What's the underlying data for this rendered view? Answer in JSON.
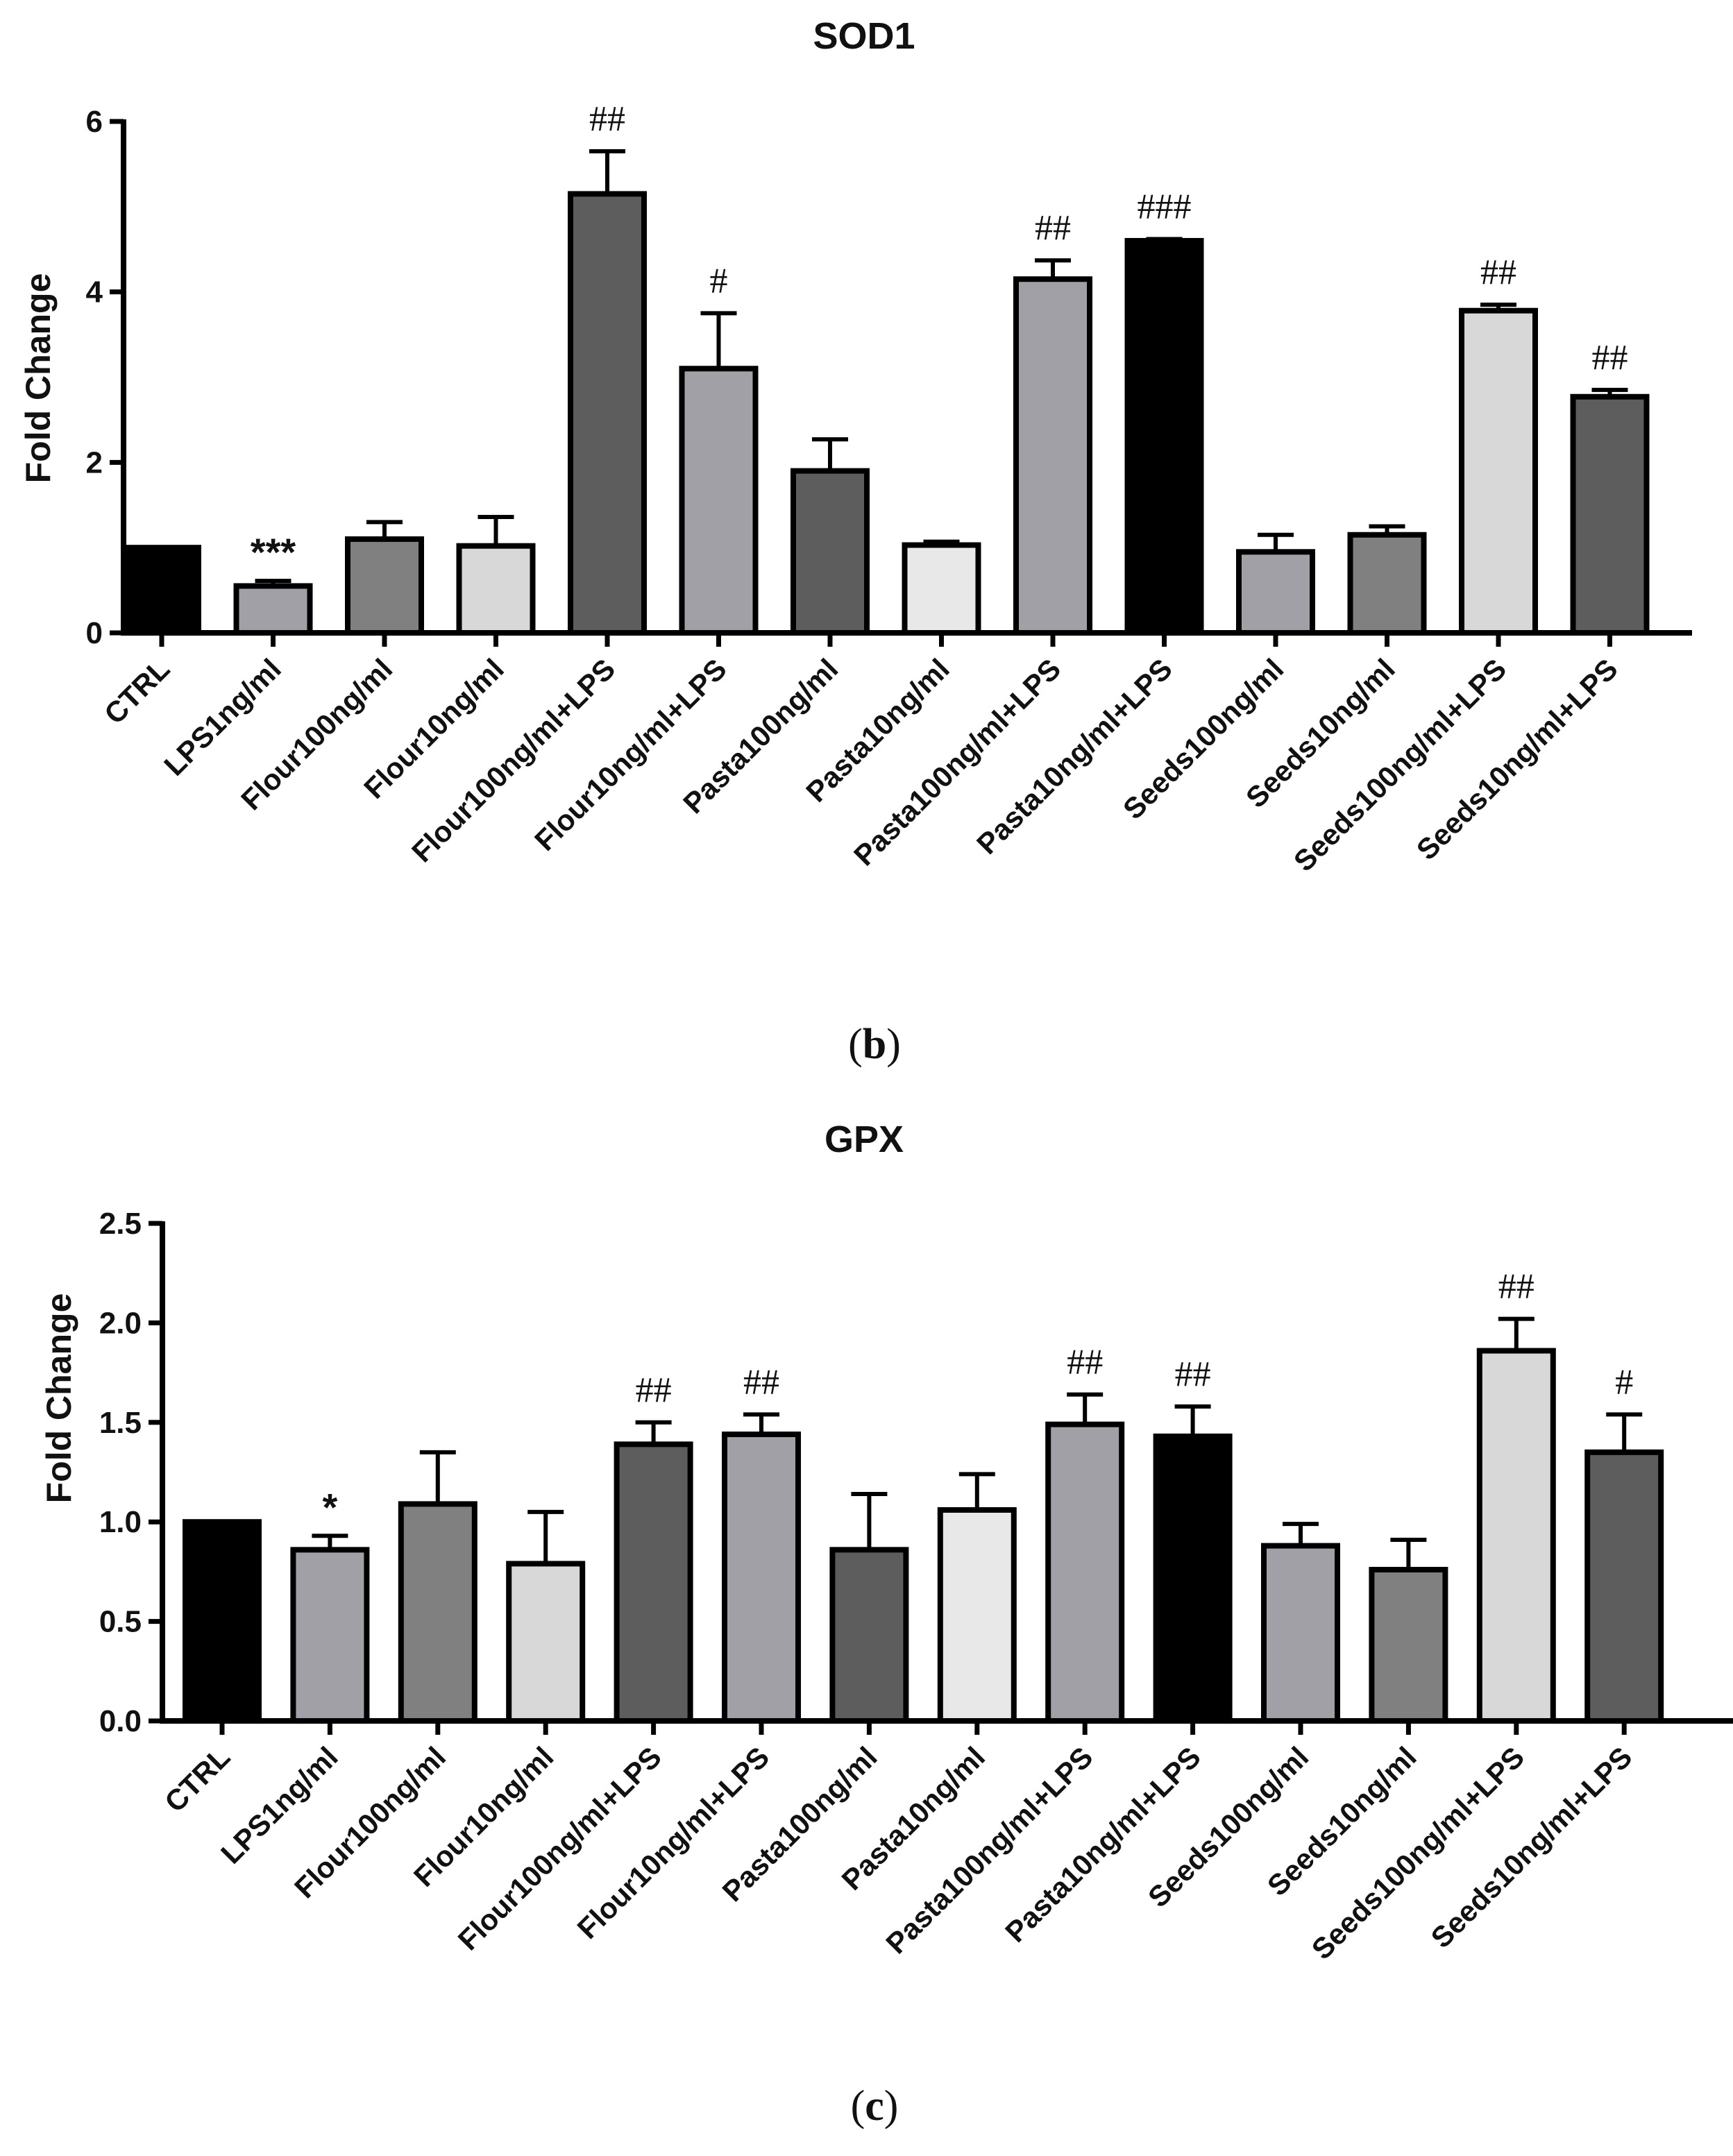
{
  "chart_data": [
    {
      "type": "bar",
      "title": "SOD1",
      "panel_label": "b",
      "ylabel": "Fold Change",
      "xlabel": "",
      "ylim": [
        0,
        6
      ],
      "yticks": [
        0,
        2,
        4,
        6
      ],
      "ytick_labels": [
        "0",
        "2",
        "4",
        "6"
      ],
      "categories": [
        "CTRL",
        "LPS1ng/ml",
        "Flour100ng/ml",
        "Flour10ng/ml",
        "Flour100ng/ml+LPS",
        "Flour10ng/ml+LPS",
        "Pasta100ng/ml",
        "Pasta10ng/ml",
        "Pasta100ng/ml+LPS",
        "Pasta10ng/ml+LPS",
        "Seeds100ng/ml",
        "Seeds10ng/ml",
        "Seeds100ng/ml+LPS",
        "Seeds10ng/ml+LPS"
      ],
      "values": [
        1.0,
        0.55,
        1.1,
        1.02,
        5.15,
        3.1,
        1.9,
        1.03,
        4.15,
        4.6,
        0.95,
        1.15,
        3.78,
        2.77
      ],
      "errors": [
        0.0,
        0.06,
        0.2,
        0.34,
        0.5,
        0.65,
        0.37,
        0.04,
        0.22,
        0.02,
        0.2,
        0.1,
        0.07,
        0.08
      ],
      "annotations": [
        "",
        "***",
        "",
        "",
        "##",
        "#",
        "",
        "",
        "##",
        "###",
        "",
        "",
        "##",
        "##"
      ],
      "bar_colors": [
        "#000000",
        "#a0a0a6",
        "#808080",
        "#d8d8d8",
        "#5d5d5d",
        "#a0a0a6",
        "#5d5d5d",
        "#e8e8e8",
        "#a0a0a6",
        "#000000",
        "#a0a0a6",
        "#808080",
        "#d8d8d8",
        "#5d5d5d"
      ],
      "grid": false
    },
    {
      "type": "bar",
      "title": "GPX",
      "panel_label": "c",
      "ylabel": "Fold Change",
      "xlabel": "",
      "ylim": [
        0,
        2.5
      ],
      "yticks": [
        0,
        0.5,
        1.0,
        1.5,
        2.0,
        2.5
      ],
      "ytick_labels": [
        "0.0",
        "0.5",
        "1.0",
        "1.5",
        "2.0",
        "2.5"
      ],
      "categories": [
        "CTRL",
        "LPS1ng/ml",
        "Flour100ng/ml",
        "Flour10ng/ml",
        "Flour100ng/ml+LPS",
        "Flour10ng/ml+LPS",
        "Pasta100ng/ml",
        "Pasta10ng/ml",
        "Pasta100ng/ml+LPS",
        "Pasta10ng/ml+LPS",
        "Seeds100ng/ml",
        "Seeds10ng/ml",
        "Seeds100ng/ml+LPS",
        "Seeds10ng/ml+LPS"
      ],
      "values": [
        1.0,
        0.86,
        1.09,
        0.79,
        1.39,
        1.44,
        0.86,
        1.06,
        1.49,
        1.43,
        0.88,
        0.76,
        1.86,
        1.35
      ],
      "errors": [
        0.0,
        0.07,
        0.26,
        0.26,
        0.11,
        0.1,
        0.28,
        0.18,
        0.15,
        0.15,
        0.11,
        0.15,
        0.16,
        0.19
      ],
      "annotations": [
        "",
        "*",
        "",
        "",
        "##",
        "##",
        "",
        "",
        "##",
        "##",
        "",
        "",
        "##",
        "#"
      ],
      "bar_colors": [
        "#000000",
        "#a0a0a6",
        "#808080",
        "#d8d8d8",
        "#5d5d5d",
        "#a0a0a6",
        "#5d5d5d",
        "#e8e8e8",
        "#a0a0a6",
        "#000000",
        "#a0a0a6",
        "#808080",
        "#d8d8d8",
        "#5d5d5d"
      ],
      "grid": false
    }
  ]
}
